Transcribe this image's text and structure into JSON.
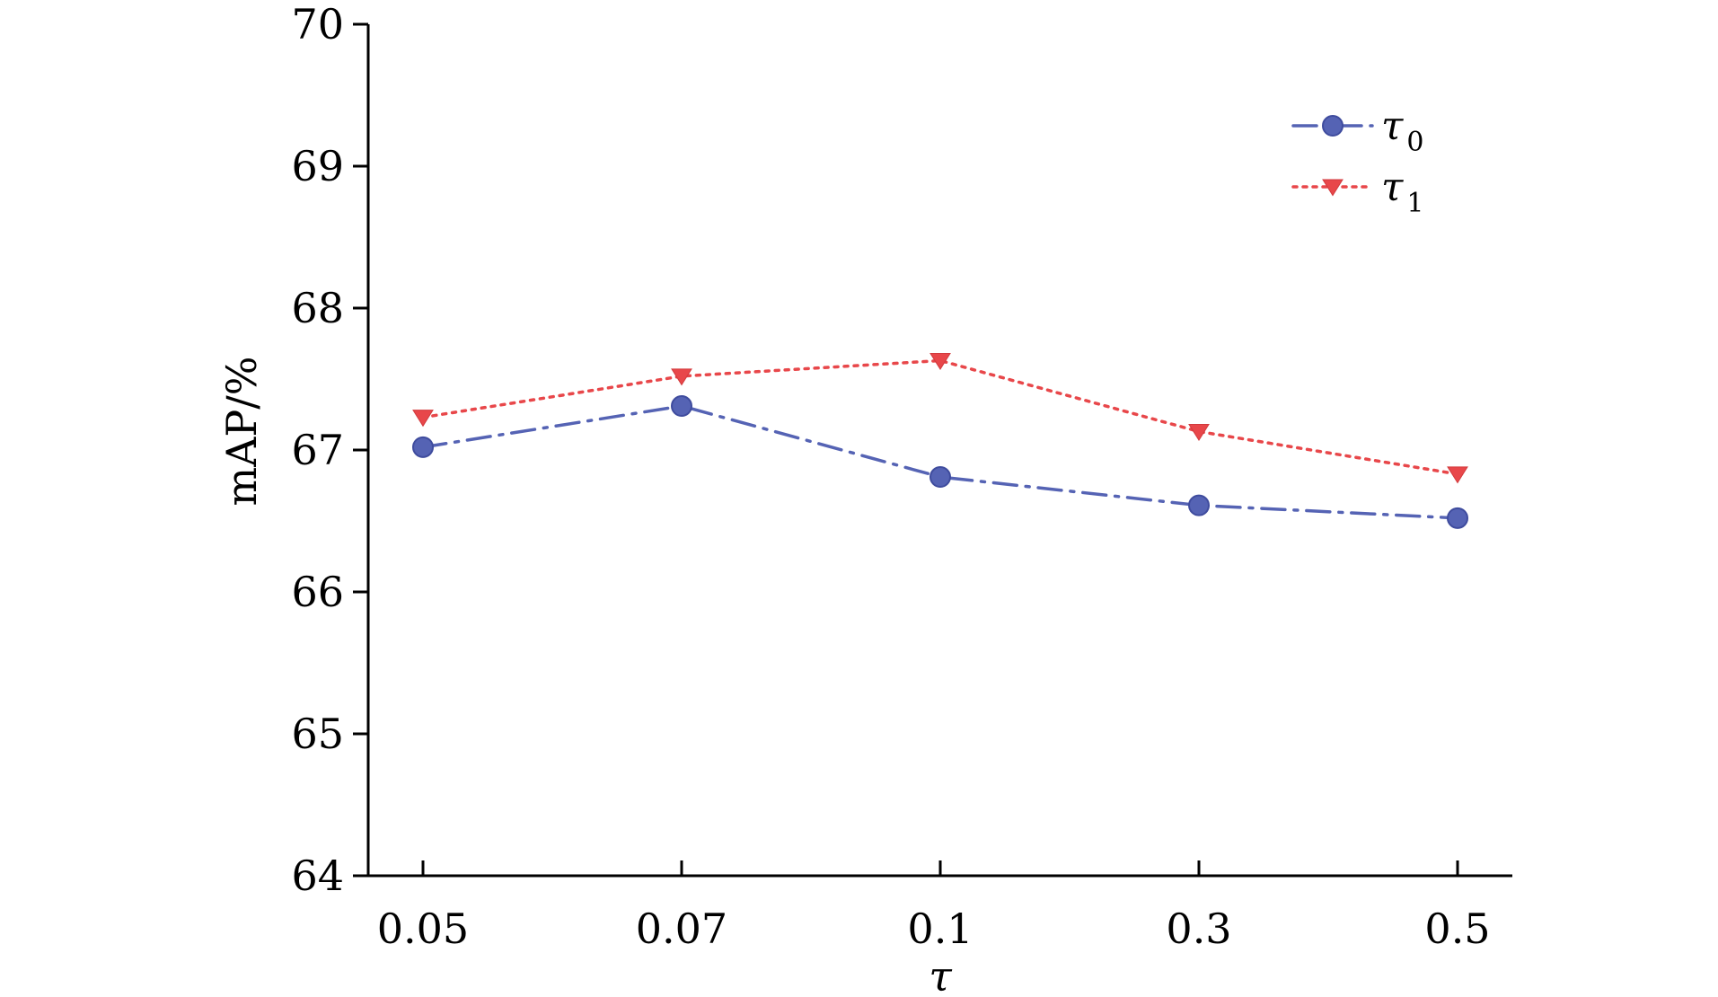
{
  "chart_data": {
    "type": "line",
    "categories": [
      "0.05",
      "0.07",
      "0.1",
      "0.3",
      "0.5"
    ],
    "xlabel": "τ",
    "ylabel": "mAP/%",
    "ylim": [
      64,
      70
    ],
    "yticks": [
      "64",
      "65",
      "66",
      "67",
      "68",
      "69",
      "70"
    ],
    "grid": false,
    "legend_position": "top-right",
    "series": [
      {
        "name": "τ",
        "name_subscript": "0",
        "values": [
          67.02,
          67.31,
          66.81,
          66.61,
          66.52
        ],
        "color": "#5563b4",
        "marker": "circle",
        "line_style": "dash-dot"
      },
      {
        "name": "τ",
        "name_subscript": "1",
        "values": [
          67.23,
          67.52,
          67.63,
          67.13,
          66.83
        ],
        "color": "#e8474a",
        "marker": "triangle-down",
        "line_style": "dotted"
      }
    ]
  }
}
